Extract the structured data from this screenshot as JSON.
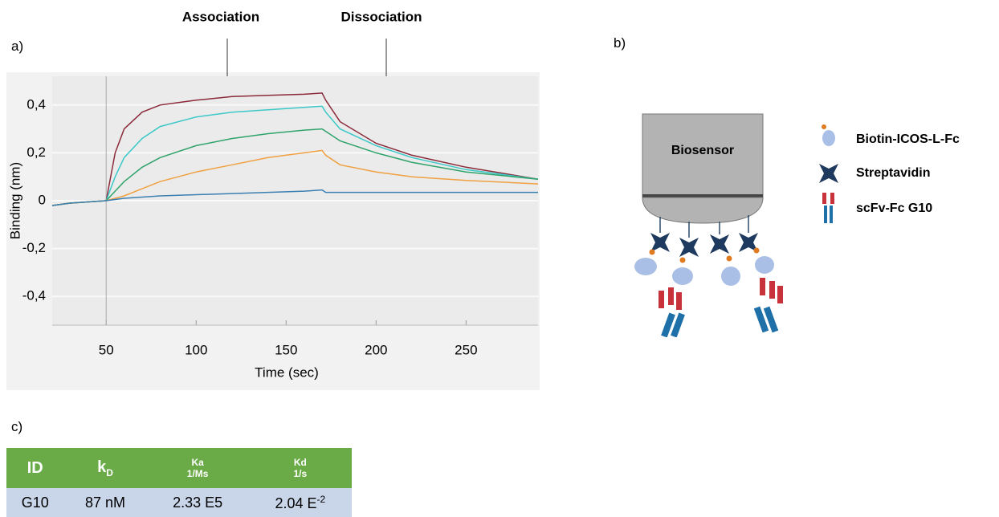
{
  "panels": {
    "a": "a)",
    "b": "b)",
    "c": "c)"
  },
  "chart_data": {
    "type": "line",
    "xlabel": "Time (sec)",
    "ylabel": "Binding (nm)",
    "annotations": [
      "Association",
      "Dissociation"
    ],
    "x": [
      20,
      30,
      40,
      50,
      55,
      60,
      70,
      80,
      100,
      120,
      140,
      160,
      170,
      172,
      180,
      200,
      220,
      250,
      290
    ],
    "series": [
      {
        "color": "#8b2a3a",
        "values": [
          -0.02,
          -0.01,
          -0.005,
          0,
          0.2,
          0.3,
          0.37,
          0.4,
          0.42,
          0.435,
          0.44,
          0.445,
          0.45,
          0.42,
          0.33,
          0.24,
          0.19,
          0.14,
          0.09
        ]
      },
      {
        "color": "#3cc8c8",
        "values": [
          -0.02,
          -0.01,
          -0.005,
          0,
          0.1,
          0.18,
          0.26,
          0.31,
          0.35,
          0.37,
          0.38,
          0.39,
          0.395,
          0.37,
          0.3,
          0.23,
          0.18,
          0.13,
          0.09
        ]
      },
      {
        "color": "#2fa36b",
        "values": [
          -0.02,
          -0.01,
          -0.005,
          0,
          0.04,
          0.08,
          0.14,
          0.18,
          0.23,
          0.26,
          0.28,
          0.295,
          0.3,
          0.29,
          0.25,
          0.2,
          0.16,
          0.12,
          0.09
        ]
      },
      {
        "color": "#f0a040",
        "values": [
          -0.02,
          -0.01,
          -0.005,
          0,
          0.01,
          0.02,
          0.05,
          0.08,
          0.12,
          0.15,
          0.18,
          0.2,
          0.21,
          0.19,
          0.15,
          0.12,
          0.1,
          0.085,
          0.07
        ]
      },
      {
        "color": "#3a7fb0",
        "values": [
          -0.02,
          -0.01,
          -0.005,
          0,
          0.005,
          0.01,
          0.015,
          0.02,
          0.025,
          0.03,
          0.035,
          0.04,
          0.045,
          0.035,
          0.035,
          0.035,
          0.035,
          0.035,
          0.035
        ]
      }
    ],
    "xlim": [
      20,
      290
    ],
    "xticks": [
      50,
      100,
      150,
      200,
      250
    ],
    "ylim": [
      -0.52,
      0.52
    ],
    "yticks": [
      {
        "value": 0.4,
        "label": "0,4"
      },
      {
        "value": 0.2,
        "label": "0,2"
      },
      0,
      {
        "value": -0.2,
        "label": "-0,2"
      },
      {
        "value": -0.4,
        "label": "-0,4"
      }
    ],
    "grid": true
  },
  "diagram": {
    "sensor": "Biosensor",
    "legend": [
      "Biotin-ICOS-L-Fc",
      "Streptavidin",
      "scFv-Fc G10"
    ]
  },
  "table": {
    "header": {
      "id": "ID",
      "kd_main": "k",
      "kd_sub": "D",
      "ka": "Ka",
      "ka_unit": "1/Ms",
      "kdiss": "Kd",
      "kdiss_unit": "1/s"
    },
    "rows": [
      [
        "G10",
        "87 nM",
        "2.33 E5",
        "2.04 E",
        "-2"
      ]
    ]
  }
}
